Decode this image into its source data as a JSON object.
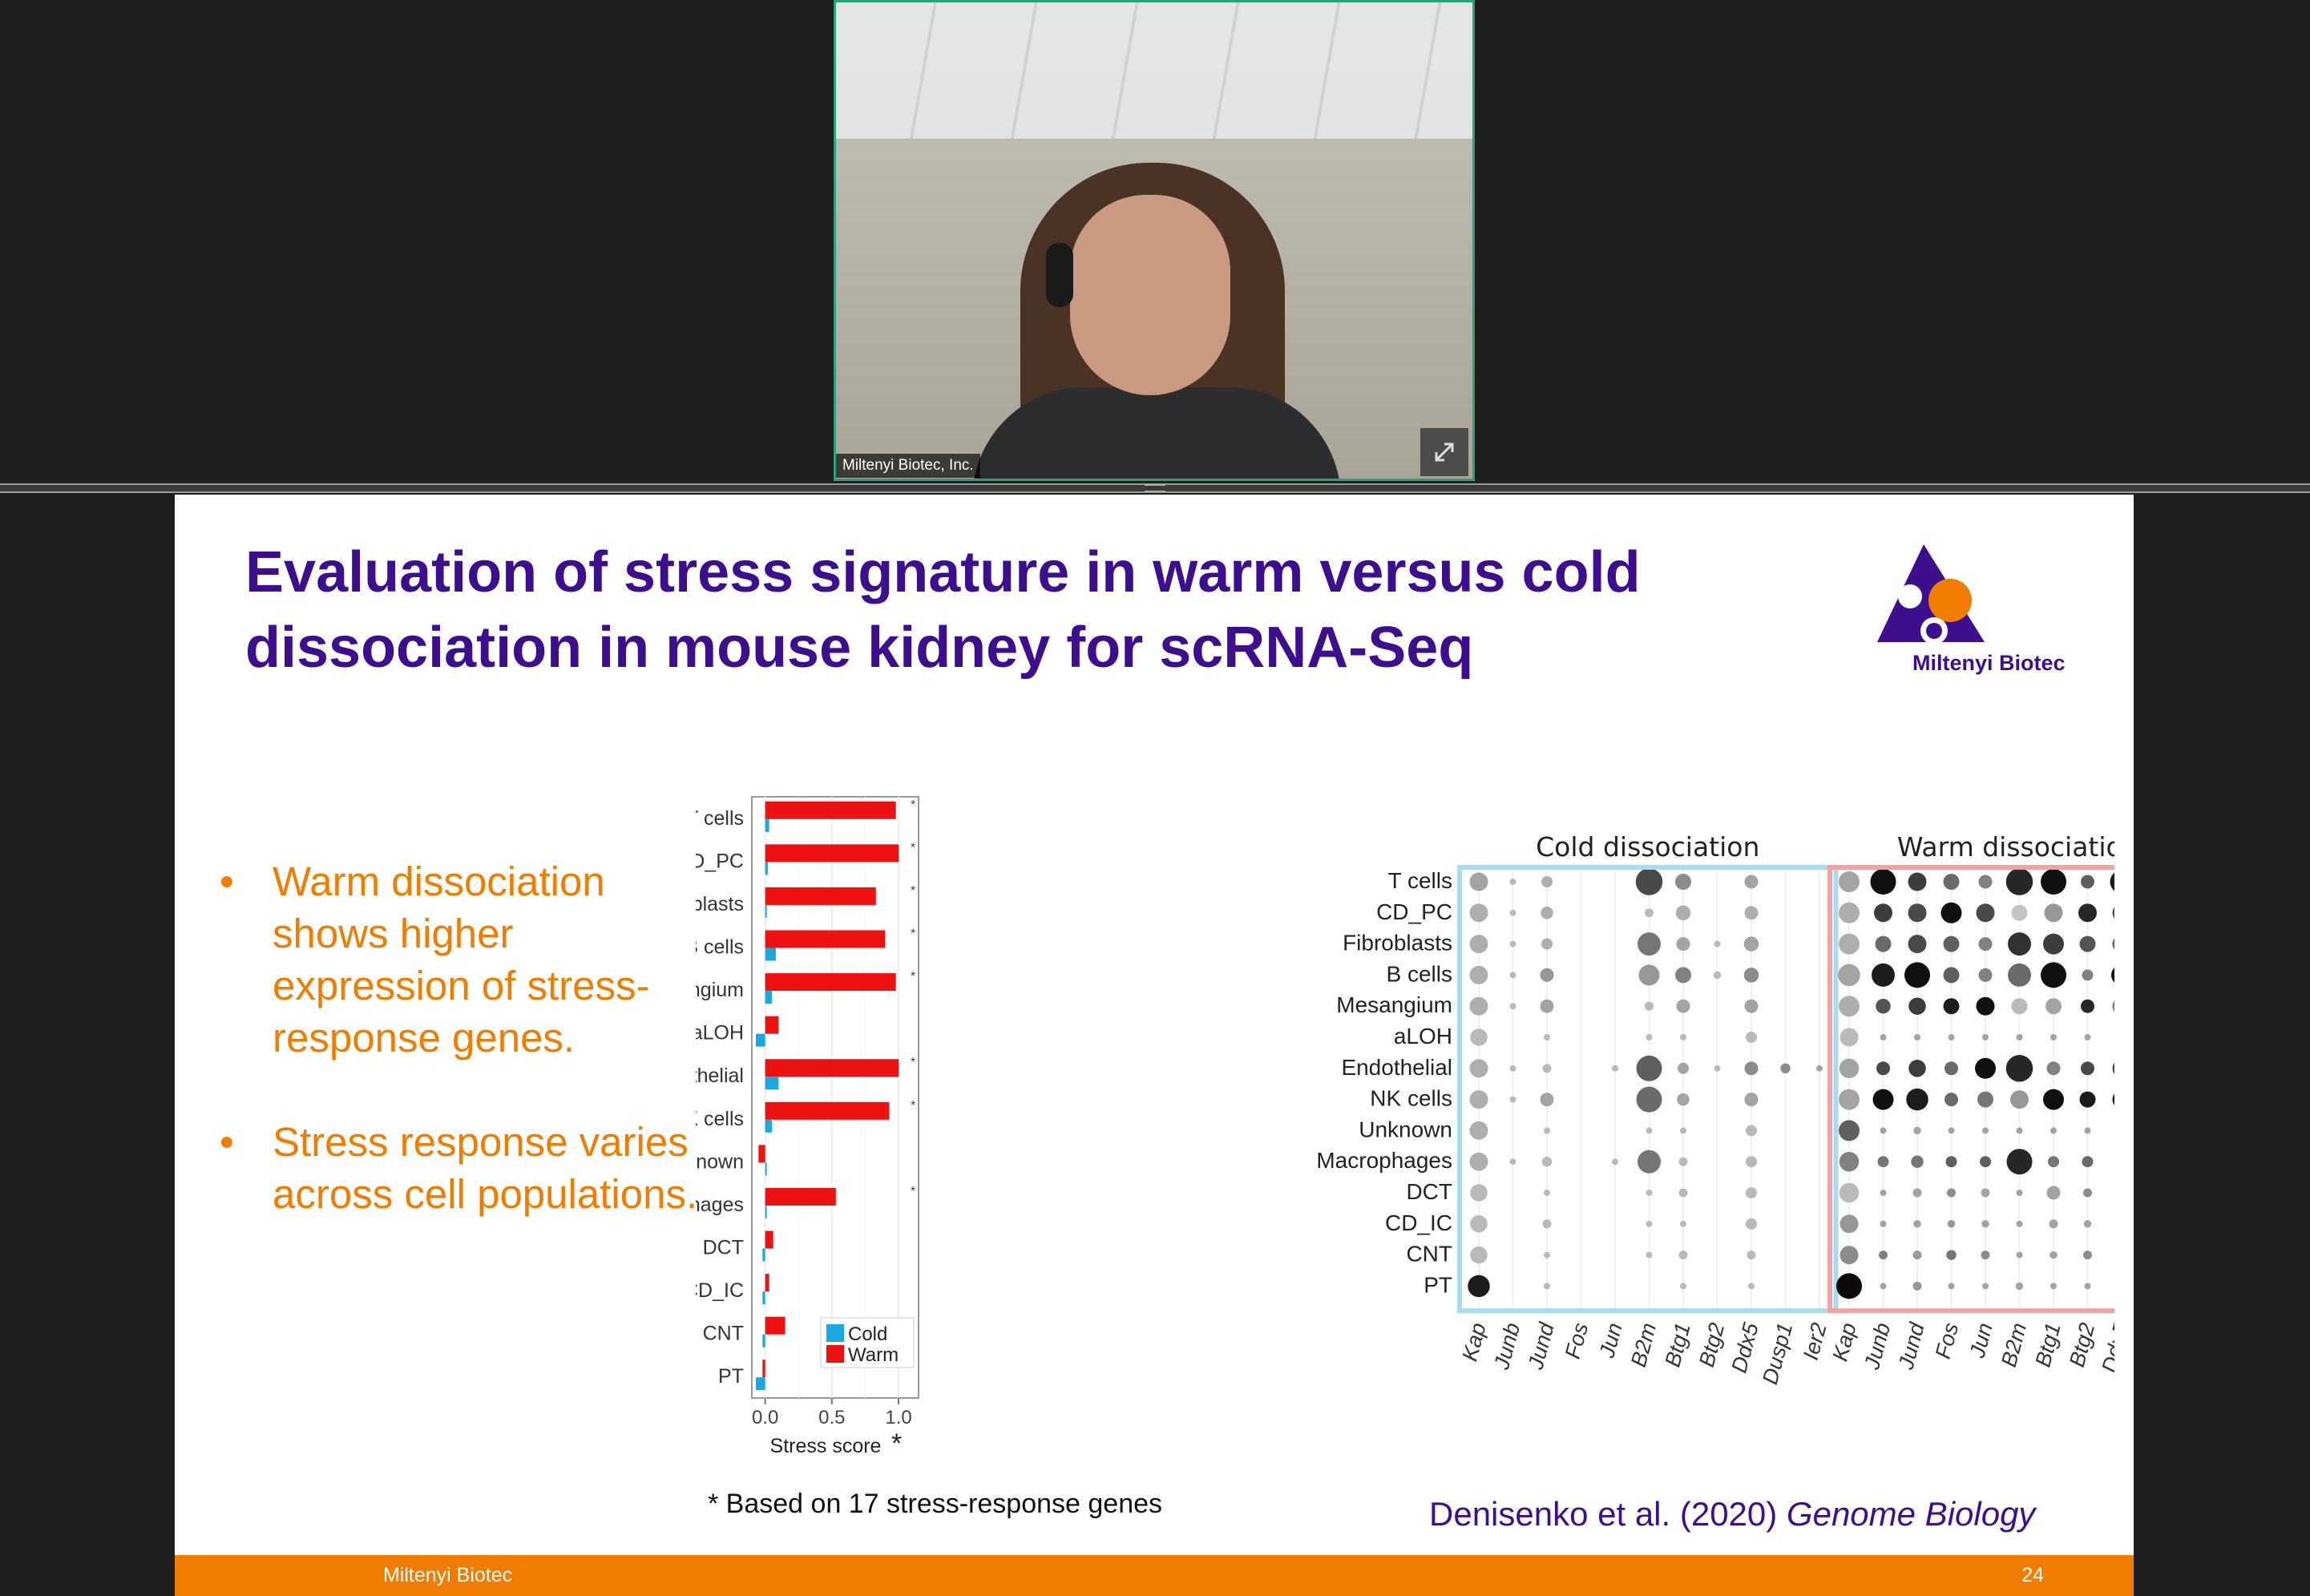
{
  "video": {
    "participant_label": "Miltenyi Biotec, Inc.",
    "expand_icon": "expand-icon"
  },
  "slide": {
    "title_line1": "Evaluation of stress signature in warm versus cold",
    "title_line2": "dissociation in mouse kidney for scRNA-Seq",
    "logo_text": "Miltenyi Biotec",
    "bullets": [
      "Warm dissociation shows higher expression of stress-response genes.",
      "Stress response varies across cell populations."
    ],
    "bullet_marker": "•",
    "footnote": "* Based on 17 stress-response genes",
    "citation_authors": "Denisenko et al. (2020) ",
    "citation_journal": "Genome Biology",
    "footer_left": "Miltenyi Biotec",
    "page_number": "24",
    "colors": {
      "title": "#3d0f8f",
      "bullet": "#f07d00",
      "footer": "#f07d00",
      "cold": "#1ba8e0",
      "warm": "#ee1111"
    }
  },
  "chart_data": [
    {
      "type": "bar",
      "orientation": "horizontal",
      "categories": [
        "T cells",
        "CD_PC",
        "Fibroblasts",
        "B cells",
        "Mesangium",
        "aLOH",
        "Endothelial",
        "NK cells",
        "Unknown",
        "Macrophages",
        "DCT",
        "CD_IC",
        "CNT",
        "PT"
      ],
      "series": [
        {
          "name": "Cold",
          "values": [
            0.03,
            0.02,
            0.01,
            0.08,
            0.05,
            -0.07,
            0.1,
            0.05,
            0.0,
            0.0,
            -0.02,
            -0.02,
            -0.02,
            -0.07
          ]
        },
        {
          "name": "Warm",
          "values": [
            0.98,
            1.0,
            0.83,
            0.9,
            0.98,
            0.1,
            1.0,
            0.93,
            -0.05,
            0.53,
            0.06,
            0.03,
            0.15,
            -0.02
          ]
        }
      ],
      "significant": [
        true,
        true,
        true,
        true,
        true,
        false,
        true,
        true,
        false,
        true,
        false,
        false,
        false,
        false
      ],
      "xticks": [
        "0.0",
        "0.5",
        "1.0"
      ],
      "xlim": [
        -0.1,
        1.15
      ],
      "xlabel": "Stress score",
      "xlabel_mark": "*",
      "significance_mark": "*",
      "legend": "bottom-right"
    },
    {
      "type": "dot",
      "panels": [
        "Cold dissociation",
        "Warm dissociation"
      ],
      "rows": [
        "T cells",
        "CD_PC",
        "Fibroblasts",
        "B cells",
        "Mesangium",
        "aLOH",
        "Endothelial",
        "NK cells",
        "Unknown",
        "Macrophages",
        "DCT",
        "CD_IC",
        "CNT",
        "PT"
      ],
      "columns": [
        "Kap",
        "Junb",
        "Jund",
        "Fos",
        "Jun",
        "B2m",
        "Btg1",
        "Btg2",
        "Ddx5",
        "Dusp1",
        "Ier2"
      ],
      "cold_size": [
        [
          0.6,
          0.1,
          0.3,
          0,
          0,
          0.95,
          0.5,
          0,
          0.4,
          0,
          0
        ],
        [
          0.6,
          0.1,
          0.35,
          0,
          0,
          0.2,
          0.45,
          0,
          0.4,
          0,
          0
        ],
        [
          0.6,
          0.1,
          0.3,
          0,
          0,
          0.8,
          0.4,
          0.1,
          0.45,
          0,
          0
        ],
        [
          0.6,
          0.1,
          0.4,
          0,
          0,
          0.7,
          0.5,
          0.15,
          0.45,
          0,
          0
        ],
        [
          0.6,
          0.1,
          0.4,
          0,
          0,
          0.2,
          0.4,
          0,
          0.4,
          0,
          0
        ],
        [
          0.55,
          0,
          0.1,
          0,
          0,
          0.1,
          0.1,
          0,
          0.3,
          0,
          0
        ],
        [
          0.6,
          0.1,
          0.2,
          0,
          0.1,
          0.9,
          0.3,
          0.1,
          0.4,
          0.25,
          0.1
        ],
        [
          0.6,
          0.1,
          0.4,
          0,
          0,
          0.9,
          0.35,
          0,
          0.4,
          0,
          0
        ],
        [
          0.6,
          0,
          0.1,
          0,
          0,
          0.1,
          0.1,
          0,
          0.3,
          0,
          0
        ],
        [
          0.6,
          0.1,
          0.25,
          0,
          0.1,
          0.8,
          0.2,
          0,
          0.3,
          0,
          0
        ],
        [
          0.55,
          0,
          0.1,
          0,
          0,
          0.1,
          0.2,
          0,
          0.3,
          0,
          0
        ],
        [
          0.55,
          0,
          0.2,
          0,
          0,
          0.1,
          0.1,
          0,
          0.3,
          0,
          0
        ],
        [
          0.55,
          0,
          0.1,
          0,
          0,
          0.1,
          0.2,
          0,
          0.2,
          0,
          0
        ],
        [
          0.75,
          0,
          0.1,
          0,
          0,
          0,
          0.1,
          0,
          0.1,
          0,
          0
        ]
      ],
      "cold_shade": [
        [
          0.3,
          0.2,
          0.25,
          0,
          0,
          0.7,
          0.4,
          0,
          0.3,
          0,
          0
        ],
        [
          0.25,
          0.2,
          0.25,
          0,
          0,
          0.2,
          0.25,
          0,
          0.25,
          0,
          0
        ],
        [
          0.25,
          0.2,
          0.25,
          0,
          0,
          0.5,
          0.3,
          0.2,
          0.3,
          0,
          0
        ],
        [
          0.25,
          0.2,
          0.35,
          0,
          0,
          0.35,
          0.45,
          0.2,
          0.4,
          0,
          0
        ],
        [
          0.25,
          0.2,
          0.3,
          0,
          0,
          0.2,
          0.3,
          0,
          0.3,
          0,
          0
        ],
        [
          0.2,
          0,
          0.2,
          0,
          0,
          0.2,
          0.2,
          0,
          0.2,
          0,
          0
        ],
        [
          0.25,
          0.2,
          0.2,
          0,
          0.2,
          0.6,
          0.3,
          0.2,
          0.4,
          0.4,
          0.3
        ],
        [
          0.25,
          0.2,
          0.3,
          0,
          0,
          0.55,
          0.3,
          0,
          0.3,
          0,
          0
        ],
        [
          0.25,
          0,
          0.2,
          0,
          0,
          0.2,
          0.2,
          0,
          0.2,
          0,
          0
        ],
        [
          0.25,
          0.2,
          0.2,
          0,
          0.2,
          0.5,
          0.2,
          0,
          0.2,
          0,
          0
        ],
        [
          0.2,
          0,
          0.2,
          0,
          0,
          0.2,
          0.2,
          0,
          0.2,
          0,
          0
        ],
        [
          0.2,
          0,
          0.2,
          0,
          0,
          0.2,
          0.2,
          0,
          0.2,
          0,
          0
        ],
        [
          0.2,
          0,
          0.2,
          0,
          0,
          0.2,
          0.2,
          0,
          0.2,
          0,
          0
        ],
        [
          0.9,
          0,
          0.2,
          0,
          0,
          0,
          0.2,
          0,
          0.2,
          0,
          0
        ]
      ],
      "warm_size": [
        [
          0.7,
          0.9,
          0.6,
          0.5,
          0.4,
          0.95,
          0.9,
          0.4,
          0.8,
          0.5,
          0.35
        ],
        [
          0.7,
          0.6,
          0.6,
          0.7,
          0.6,
          0.5,
          0.6,
          0.6,
          0.6,
          0.3,
          0.65
        ],
        [
          0.7,
          0.5,
          0.6,
          0.5,
          0.4,
          0.8,
          0.7,
          0.5,
          0.6,
          0.6,
          0.5
        ],
        [
          0.75,
          0.8,
          0.9,
          0.5,
          0.4,
          0.8,
          0.9,
          0.3,
          0.7,
          0.2,
          0.45
        ],
        [
          0.7,
          0.45,
          0.55,
          0.5,
          0.6,
          0.5,
          0.5,
          0.4,
          0.6,
          0.4,
          0.35
        ],
        [
          0.6,
          0.1,
          0.1,
          0.1,
          0.1,
          0.1,
          0.1,
          0.1,
          0.1,
          0.1,
          0.1
        ],
        [
          0.65,
          0.4,
          0.55,
          0.4,
          0.7,
          0.95,
          0.4,
          0.4,
          0.6,
          0.5,
          0.35
        ],
        [
          0.7,
          0.7,
          0.75,
          0.4,
          0.5,
          0.6,
          0.7,
          0.5,
          0.6,
          0.5,
          0.45
        ],
        [
          0.7,
          0.1,
          0.15,
          0.1,
          0.1,
          0.1,
          0.1,
          0.1,
          0.15,
          0.1,
          0.1
        ],
        [
          0.65,
          0.3,
          0.35,
          0.3,
          0.3,
          0.9,
          0.3,
          0.3,
          0.4,
          0.3,
          0.25
        ],
        [
          0.65,
          0.1,
          0.2,
          0.2,
          0.2,
          0.1,
          0.4,
          0.2,
          0.25,
          0.1,
          0.15
        ],
        [
          0.6,
          0.1,
          0.15,
          0.15,
          0.15,
          0.1,
          0.2,
          0.15,
          0.2,
          0.1,
          0.1
        ],
        [
          0.6,
          0.2,
          0.2,
          0.25,
          0.2,
          0.1,
          0.15,
          0.2,
          0.25,
          0.1,
          0.1
        ],
        [
          0.9,
          0.1,
          0.2,
          0.1,
          0.1,
          0.15,
          0.1,
          0.1,
          0.2,
          0.1,
          0.1
        ]
      ],
      "warm_shade": [
        [
          0.3,
          0.95,
          0.75,
          0.55,
          0.45,
          0.85,
          0.95,
          0.6,
          0.9,
          0.9,
          0.75
        ],
        [
          0.25,
          0.75,
          0.7,
          0.95,
          0.7,
          0.15,
          0.35,
          0.85,
          0.65,
          0.3,
          0.95
        ],
        [
          0.25,
          0.55,
          0.7,
          0.6,
          0.45,
          0.8,
          0.75,
          0.65,
          0.6,
          0.9,
          0.7
        ],
        [
          0.3,
          0.9,
          0.95,
          0.6,
          0.45,
          0.55,
          0.95,
          0.45,
          0.95,
          0.3,
          0.85
        ],
        [
          0.25,
          0.65,
          0.75,
          0.9,
          0.95,
          0.2,
          0.3,
          0.85,
          0.45,
          0.7,
          0.7
        ],
        [
          0.2,
          0.3,
          0.3,
          0.3,
          0.3,
          0.3,
          0.3,
          0.3,
          0.3,
          0.3,
          0.3
        ],
        [
          0.3,
          0.7,
          0.75,
          0.55,
          0.95,
          0.85,
          0.45,
          0.7,
          0.7,
          0.85,
          0.7
        ],
        [
          0.3,
          0.95,
          0.9,
          0.55,
          0.5,
          0.35,
          0.95,
          0.9,
          0.9,
          0.9,
          0.85
        ],
        [
          0.6,
          0.3,
          0.3,
          0.3,
          0.3,
          0.3,
          0.3,
          0.3,
          0.3,
          0.3,
          0.3
        ],
        [
          0.45,
          0.5,
          0.5,
          0.6,
          0.6,
          0.85,
          0.5,
          0.55,
          0.5,
          0.7,
          0.5
        ],
        [
          0.2,
          0.3,
          0.3,
          0.4,
          0.3,
          0.3,
          0.3,
          0.4,
          0.3,
          0.3,
          0.3
        ],
        [
          0.35,
          0.3,
          0.3,
          0.35,
          0.3,
          0.3,
          0.3,
          0.3,
          0.3,
          0.3,
          0.3
        ],
        [
          0.4,
          0.45,
          0.35,
          0.5,
          0.4,
          0.3,
          0.3,
          0.4,
          0.35,
          0.3,
          0.3
        ],
        [
          0.98,
          0.3,
          0.35,
          0.3,
          0.3,
          0.3,
          0.3,
          0.3,
          0.35,
          0.3,
          0.3
        ]
      ],
      "panel_colors": {
        "cold": "#a9dcef",
        "warm": "#f0a3a3"
      }
    }
  ]
}
